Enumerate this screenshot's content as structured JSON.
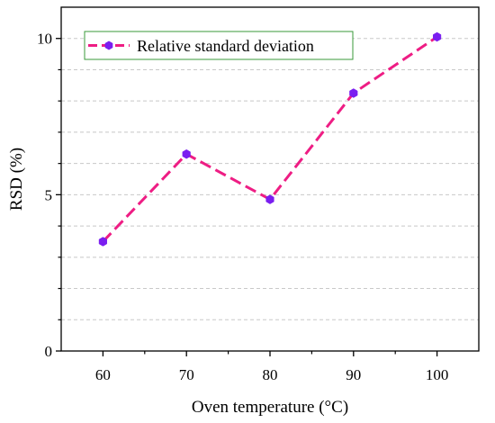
{
  "chart_data": {
    "type": "line",
    "x": [
      60,
      70,
      80,
      90,
      100
    ],
    "series": [
      {
        "name": "Relative standard deviation",
        "values": [
          3.5,
          6.3,
          4.85,
          8.25,
          10.05
        ]
      }
    ],
    "xlabel": "Oven temperature (°C)",
    "ylabel": "RSD (%)",
    "xlim": [
      55,
      105
    ],
    "ylim": [
      0,
      11
    ],
    "xticks": [
      60,
      70,
      80,
      90,
      100
    ],
    "yticks": [
      0,
      5,
      10
    ],
    "grid": "horizontal dashed",
    "legend_position": "top-left",
    "colors": {
      "line": "#ee1d84",
      "marker": "#7a1ef0",
      "legend_border": "#3a9a3a",
      "grid": "#c8c8c8",
      "axis": "#000000"
    }
  }
}
